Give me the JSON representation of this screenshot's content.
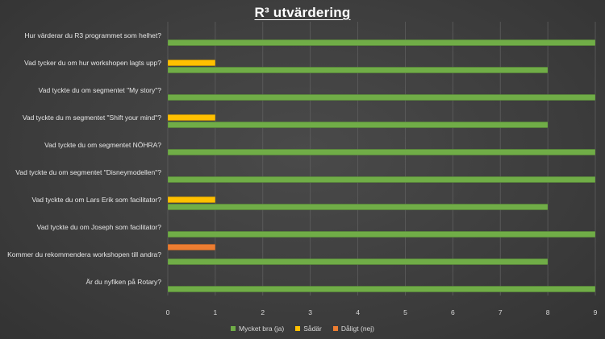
{
  "chart_data": {
    "type": "bar",
    "orientation": "horizontal",
    "title": "R³ utvärdering",
    "categories": [
      "Hur värderar du R3 programmet som helhet?",
      "Vad tycker du om hur workshopen lagts upp?",
      "Vad tyckte du om segmentet \"My story\"?",
      "Vad tyckte du m segmentet \"Shift your mind\"?",
      "Vad tyckte du om segmentet NÖHRA?",
      "Vad tyckte du om segmentet \"Disneymodellen\"?",
      "Vad tyckte du om Lars Erik som facilitator?",
      "Vad tyckte du om Joseph som facilitator?",
      "Kommer du rekommendera workshopen till andra?",
      "Är du nyfiken på Rotary?"
    ],
    "series": [
      {
        "name": "Mycket bra (ja)",
        "color": "#70ad47",
        "values": [
          9,
          8,
          9,
          8,
          9,
          9,
          8,
          9,
          8,
          9
        ]
      },
      {
        "name": "Sådär",
        "color": "#ffc000",
        "values": [
          0,
          1,
          0,
          1,
          0,
          0,
          1,
          0,
          0,
          0
        ]
      },
      {
        "name": "Dåligt (nej)",
        "color": "#ed7d31",
        "values": [
          0,
          0,
          0,
          0,
          0,
          0,
          0,
          0,
          1,
          0
        ]
      }
    ],
    "xlim": [
      0,
      9
    ],
    "xticks": [
      "0",
      "1",
      "2",
      "3",
      "4",
      "5",
      "6",
      "7",
      "8",
      "9"
    ],
    "grid": true,
    "legend_position": "bottom"
  }
}
